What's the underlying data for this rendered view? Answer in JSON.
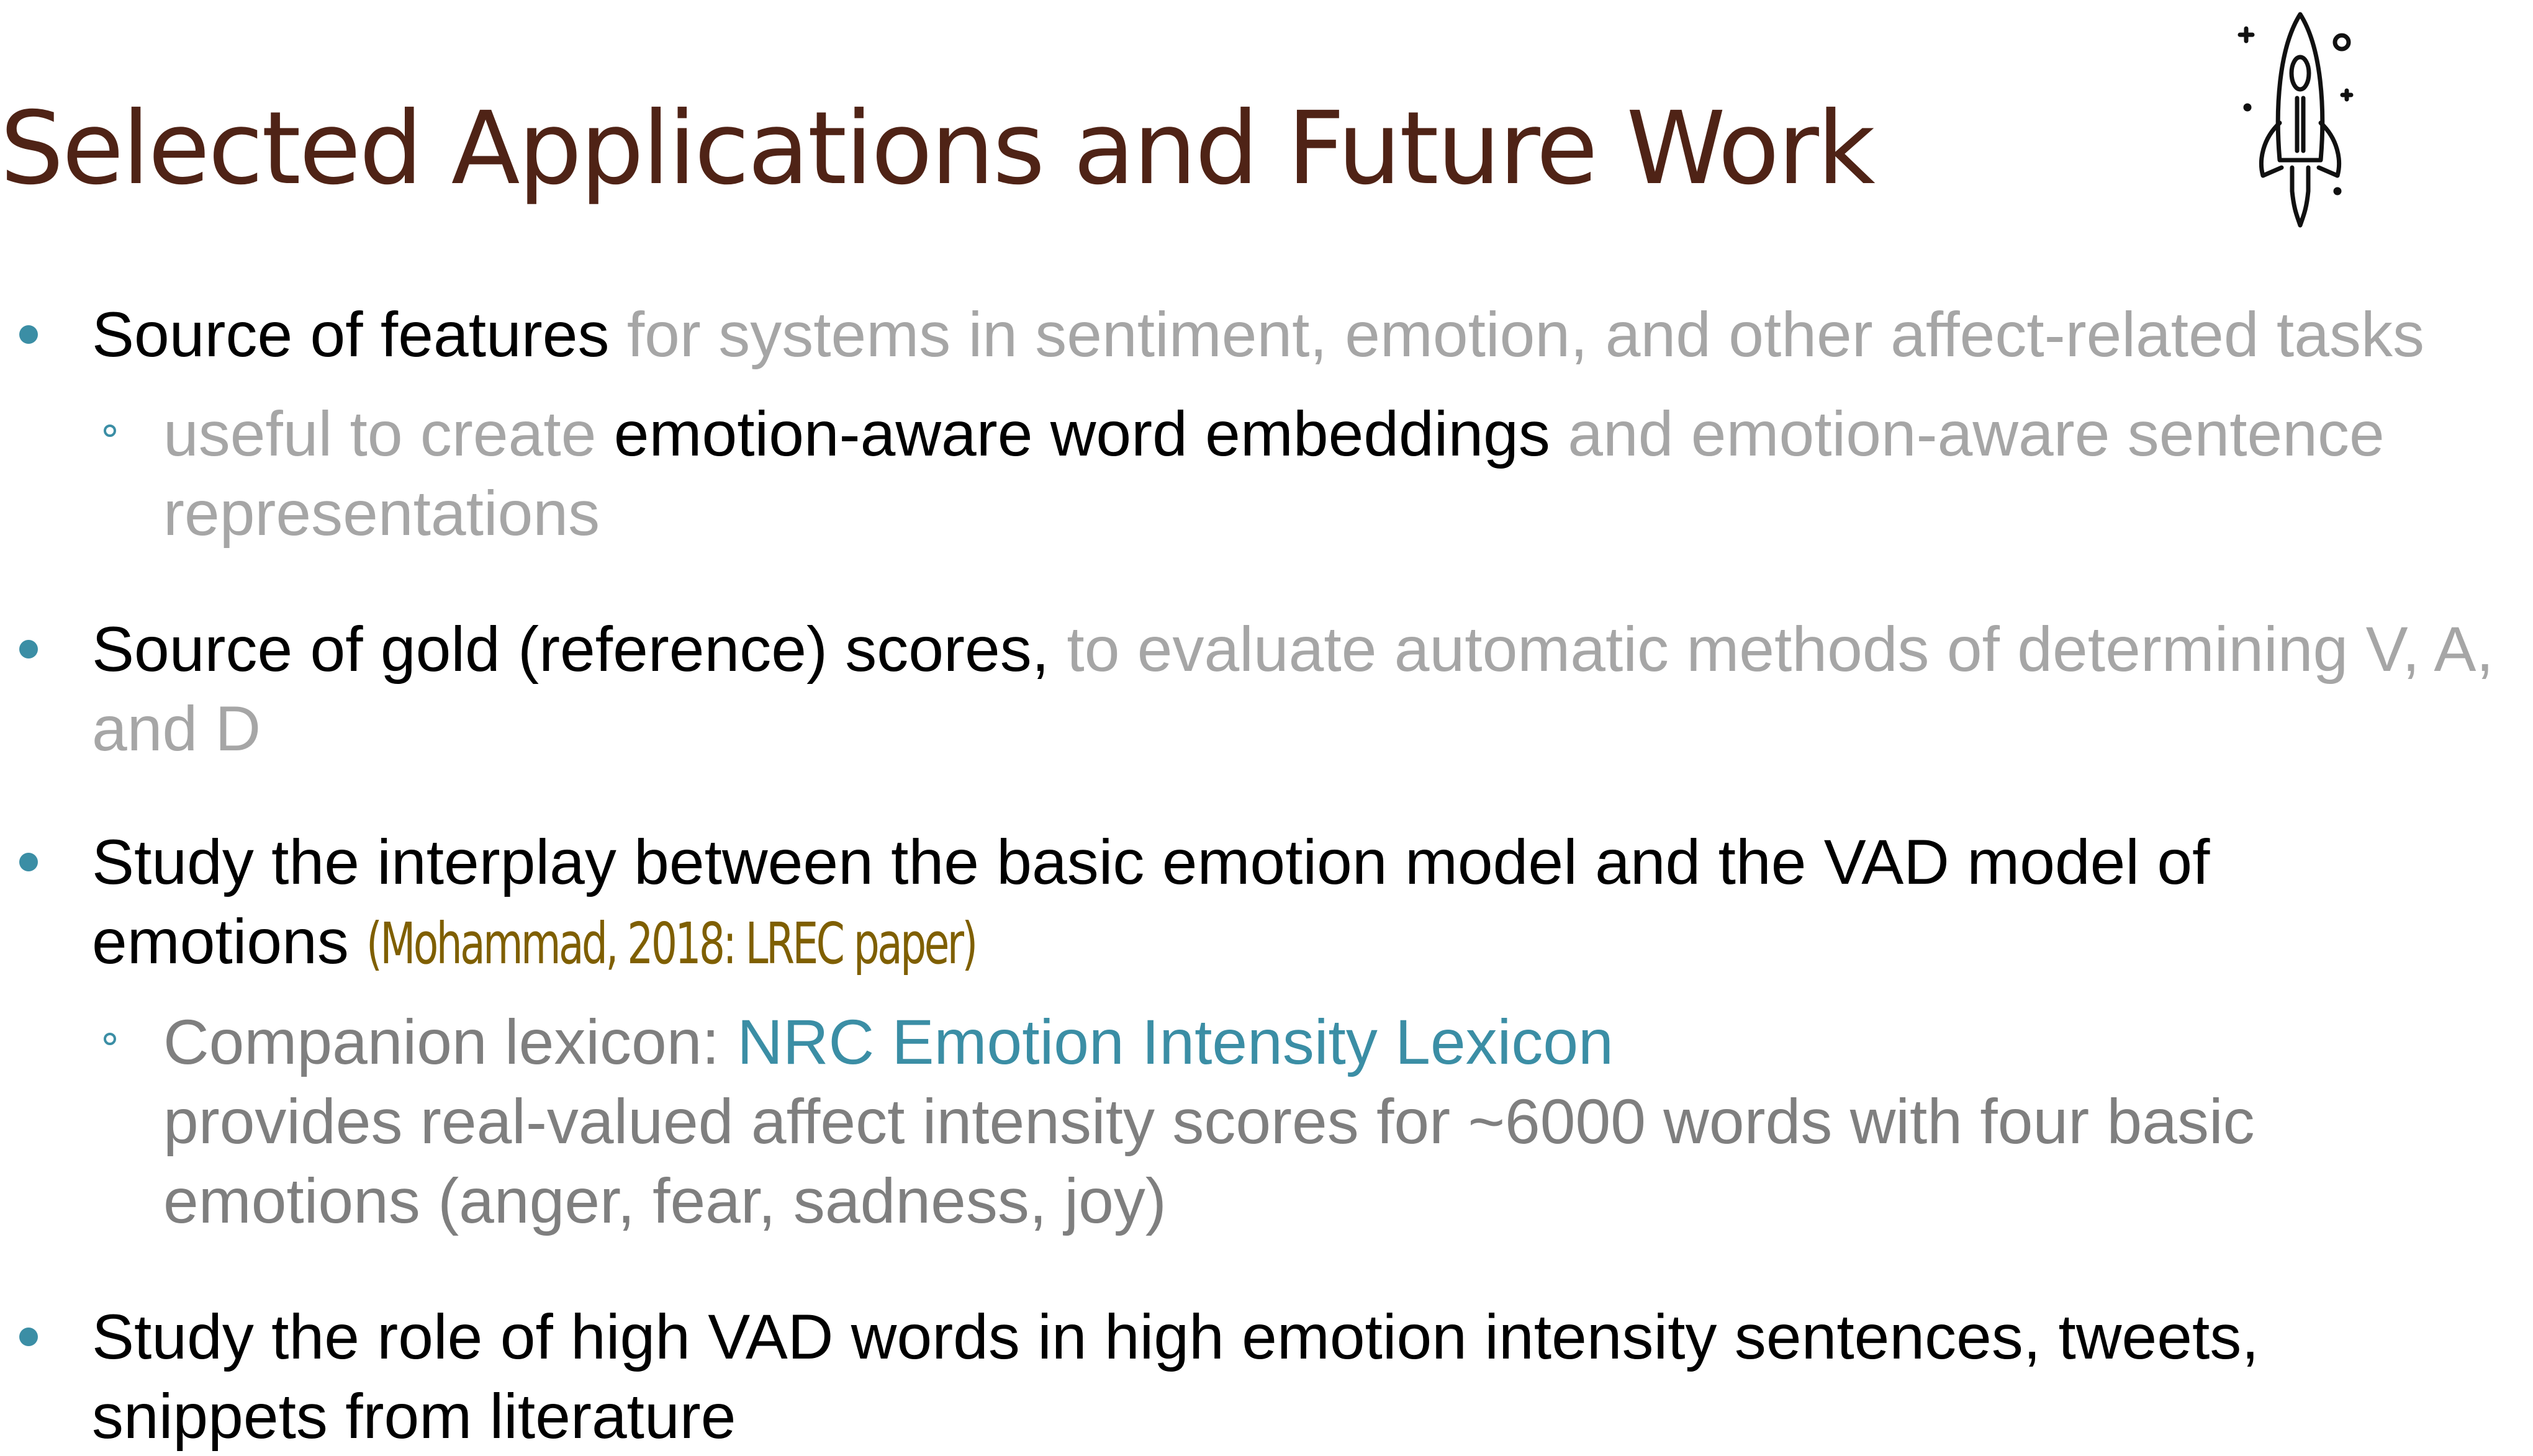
{
  "slide": {
    "title": "Selected Applications and Future Work",
    "icon": "rocket-icon",
    "colors": {
      "title": "#4f2316",
      "bullet_marker": "#3b8ea5",
      "emphasis_text": "#000000",
      "muted_text": "#a6a6a6",
      "secondary_text": "#7f7f7f",
      "citation": "#7f5f00",
      "link": "#3b8ea5"
    }
  },
  "bullets": [
    {
      "lead": "Source of features",
      "rest": " for systems in sentiment, emotion, and other affect-related tasks",
      "sub": {
        "pre": "useful to create ",
        "highlight": "emotion-aware word embeddings",
        "post": " and emotion-aware sentence representations"
      }
    },
    {
      "lead": "Source of gold (reference) scores,",
      "rest": " to evaluate automatic methods of determining V, A, and D"
    },
    {
      "lead": "Study the interplay between the basic emotion model and the VAD model of emotions ",
      "citation": "(Mohammad, 2018: LREC paper)",
      "sub": {
        "label": "Companion lexicon: ",
        "link": "NRC Emotion Intensity Lexicon",
        "body": "provides real-valued affect intensity scores for ~6000 words with four basic emotions (anger, fear, sadness, joy)"
      }
    },
    {
      "lead": "Study the role of high VAD words in high emotion intensity sentences, tweets, snippets from literature"
    }
  ]
}
